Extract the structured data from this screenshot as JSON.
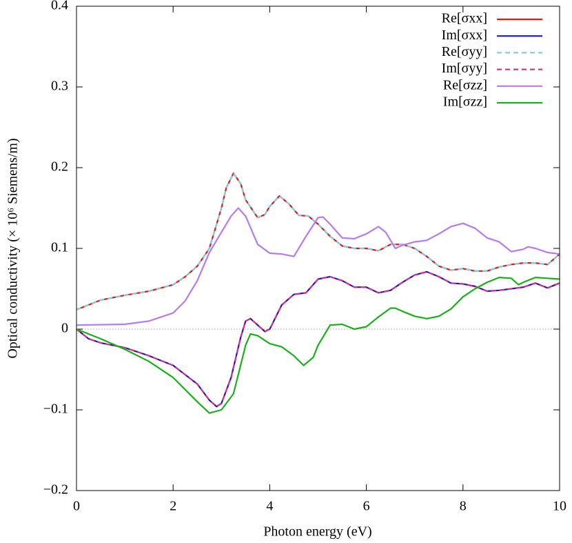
{
  "chart_data": {
    "type": "line",
    "xlabel": "Photon energy (eV)",
    "ylabel": "Optical conductivity (× 10⁶ Siemens/m)",
    "xlim": [
      0,
      10
    ],
    "xticks": [
      0,
      2,
      4,
      6,
      8,
      10
    ],
    "ylim": [
      -0.2,
      0.4
    ],
    "yticks": [
      {
        "value": -0.2,
        "label": "−0.2"
      },
      {
        "value": -0.1,
        "label": "−0.1"
      },
      0,
      0.1,
      0.2,
      0.3,
      0.4
    ],
    "zero_line": true,
    "legend": "top right",
    "series": [
      {
        "name": "Re[σxx]",
        "color": "#e01a10",
        "dashed": false,
        "x": [
          0,
          0.5,
          1,
          1.5,
          2,
          2.25,
          2.5,
          2.75,
          3,
          3.1,
          3.25,
          3.4,
          3.5,
          3.75,
          3.9,
          4,
          4.2,
          4.4,
          4.6,
          4.8,
          5,
          5.25,
          5.5,
          5.75,
          6,
          6.25,
          6.5,
          6.75,
          7,
          7.25,
          7.5,
          7.75,
          8,
          8.25,
          8.5,
          8.75,
          9,
          9.25,
          9.5,
          9.75,
          10
        ],
        "values": [
          0.024,
          0.036,
          0.042,
          0.047,
          0.055,
          0.065,
          0.078,
          0.1,
          0.15,
          0.175,
          0.193,
          0.18,
          0.16,
          0.138,
          0.142,
          0.152,
          0.165,
          0.155,
          0.141,
          0.14,
          0.13,
          0.115,
          0.103,
          0.1,
          0.1,
          0.097,
          0.105,
          0.105,
          0.1,
          0.09,
          0.078,
          0.073,
          0.075,
          0.072,
          0.072,
          0.077,
          0.08,
          0.082,
          0.082,
          0.08,
          0.093
        ]
      },
      {
        "name": "Im[σxx]",
        "color": "#1a1ac8",
        "dashed": false,
        "x": [
          0,
          0.25,
          0.5,
          1,
          1.5,
          2,
          2.5,
          2.75,
          2.9,
          3,
          3.2,
          3.4,
          3.5,
          3.6,
          3.75,
          3.9,
          4,
          4.25,
          4.5,
          4.75,
          5,
          5.25,
          5.5,
          5.75,
          6,
          6.25,
          6.5,
          6.75,
          7,
          7.25,
          7.5,
          7.75,
          8,
          8.25,
          8.5,
          8.75,
          9,
          9.25,
          9.5,
          9.75,
          10
        ],
        "values": [
          0,
          -0.012,
          -0.017,
          -0.023,
          -0.033,
          -0.045,
          -0.068,
          -0.088,
          -0.096,
          -0.092,
          -0.06,
          -0.01,
          0.01,
          0.013,
          0.005,
          -0.003,
          0,
          0.03,
          0.043,
          0.045,
          0.062,
          0.065,
          0.06,
          0.052,
          0.052,
          0.045,
          0.048,
          0.058,
          0.067,
          0.071,
          0.065,
          0.057,
          0.056,
          0.053,
          0.047,
          0.048,
          0.05,
          0.052,
          0.057,
          0.051,
          0.057
        ]
      },
      {
        "name": "Re[σyy]",
        "color": "#80cce8",
        "dashed": true,
        "x": [
          0,
          0.5,
          1,
          1.5,
          2,
          2.25,
          2.5,
          2.75,
          3,
          3.1,
          3.25,
          3.4,
          3.5,
          3.75,
          3.9,
          4,
          4.2,
          4.4,
          4.6,
          4.8,
          5,
          5.25,
          5.5,
          5.75,
          6,
          6.25,
          6.5,
          6.75,
          7,
          7.25,
          7.5,
          7.75,
          8,
          8.25,
          8.5,
          8.75,
          9,
          9.25,
          9.5,
          9.75,
          10
        ],
        "values": [
          0.024,
          0.036,
          0.042,
          0.047,
          0.055,
          0.065,
          0.078,
          0.1,
          0.15,
          0.175,
          0.193,
          0.18,
          0.16,
          0.138,
          0.142,
          0.152,
          0.165,
          0.155,
          0.141,
          0.14,
          0.13,
          0.115,
          0.103,
          0.1,
          0.1,
          0.097,
          0.105,
          0.105,
          0.1,
          0.09,
          0.078,
          0.073,
          0.075,
          0.072,
          0.072,
          0.077,
          0.08,
          0.082,
          0.082,
          0.08,
          0.093
        ]
      },
      {
        "name": "Im[σyy]",
        "color": "#e0307a",
        "dashed": true,
        "x": [
          0,
          0.25,
          0.5,
          1,
          1.5,
          2,
          2.5,
          2.75,
          2.9,
          3,
          3.2,
          3.4,
          3.5,
          3.6,
          3.75,
          3.9,
          4,
          4.25,
          4.5,
          4.75,
          5,
          5.25,
          5.5,
          5.75,
          6,
          6.25,
          6.5,
          6.75,
          7,
          7.25,
          7.5,
          7.75,
          8,
          8.25,
          8.5,
          8.75,
          9,
          9.25,
          9.5,
          9.75,
          10
        ],
        "values": [
          0,
          -0.012,
          -0.017,
          -0.023,
          -0.033,
          -0.045,
          -0.068,
          -0.088,
          -0.096,
          -0.092,
          -0.06,
          -0.01,
          0.01,
          0.013,
          0.005,
          -0.003,
          0,
          0.03,
          0.043,
          0.045,
          0.062,
          0.065,
          0.06,
          0.052,
          0.052,
          0.045,
          0.048,
          0.058,
          0.067,
          0.071,
          0.065,
          0.057,
          0.056,
          0.053,
          0.047,
          0.048,
          0.05,
          0.052,
          0.057,
          0.051,
          0.057
        ]
      },
      {
        "name": "Re[σzz]",
        "color": "#b57af0",
        "dashed": false,
        "x": [
          0,
          1,
          1.5,
          2,
          2.25,
          2.5,
          2.75,
          3,
          3.2,
          3.35,
          3.5,
          3.75,
          4,
          4.25,
          4.5,
          4.75,
          5,
          5.1,
          5.25,
          5.5,
          5.75,
          6,
          6.25,
          6.4,
          6.6,
          6.75,
          7,
          7.25,
          7.5,
          7.75,
          8,
          8.25,
          8.5,
          8.75,
          9,
          9.25,
          9.35,
          9.5,
          9.75,
          10
        ],
        "values": [
          0.005,
          0.006,
          0.01,
          0.02,
          0.035,
          0.06,
          0.095,
          0.12,
          0.14,
          0.15,
          0.14,
          0.105,
          0.094,
          0.093,
          0.09,
          0.115,
          0.138,
          0.139,
          0.13,
          0.113,
          0.112,
          0.118,
          0.127,
          0.12,
          0.1,
          0.104,
          0.108,
          0.11,
          0.118,
          0.127,
          0.131,
          0.125,
          0.113,
          0.108,
          0.096,
          0.099,
          0.102,
          0.1,
          0.095,
          0.093
        ]
      },
      {
        "name": "Im[σzz]",
        "color": "#18b018",
        "dashed": false,
        "x": [
          0,
          0.5,
          1,
          1.5,
          2,
          2.5,
          2.75,
          3,
          3.25,
          3.5,
          3.6,
          3.75,
          4,
          4.25,
          4.5,
          4.7,
          4.9,
          5,
          5.25,
          5.5,
          5.75,
          6,
          6.25,
          6.5,
          6.6,
          6.75,
          7,
          7.25,
          7.5,
          7.75,
          8,
          8.25,
          8.5,
          8.75,
          9,
          9.15,
          9.25,
          9.5,
          9.75,
          10
        ],
        "values": [
          0,
          -0.012,
          -0.025,
          -0.04,
          -0.06,
          -0.09,
          -0.104,
          -0.1,
          -0.08,
          -0.02,
          -0.006,
          -0.008,
          -0.018,
          -0.022,
          -0.033,
          -0.045,
          -0.035,
          -0.02,
          0.005,
          0.006,
          0,
          0.003,
          0.015,
          0.026,
          0.026,
          0.022,
          0.016,
          0.013,
          0.016,
          0.025,
          0.04,
          0.05,
          0.058,
          0.064,
          0.063,
          0.055,
          0.058,
          0.064,
          0.063,
          0.062
        ]
      }
    ]
  }
}
